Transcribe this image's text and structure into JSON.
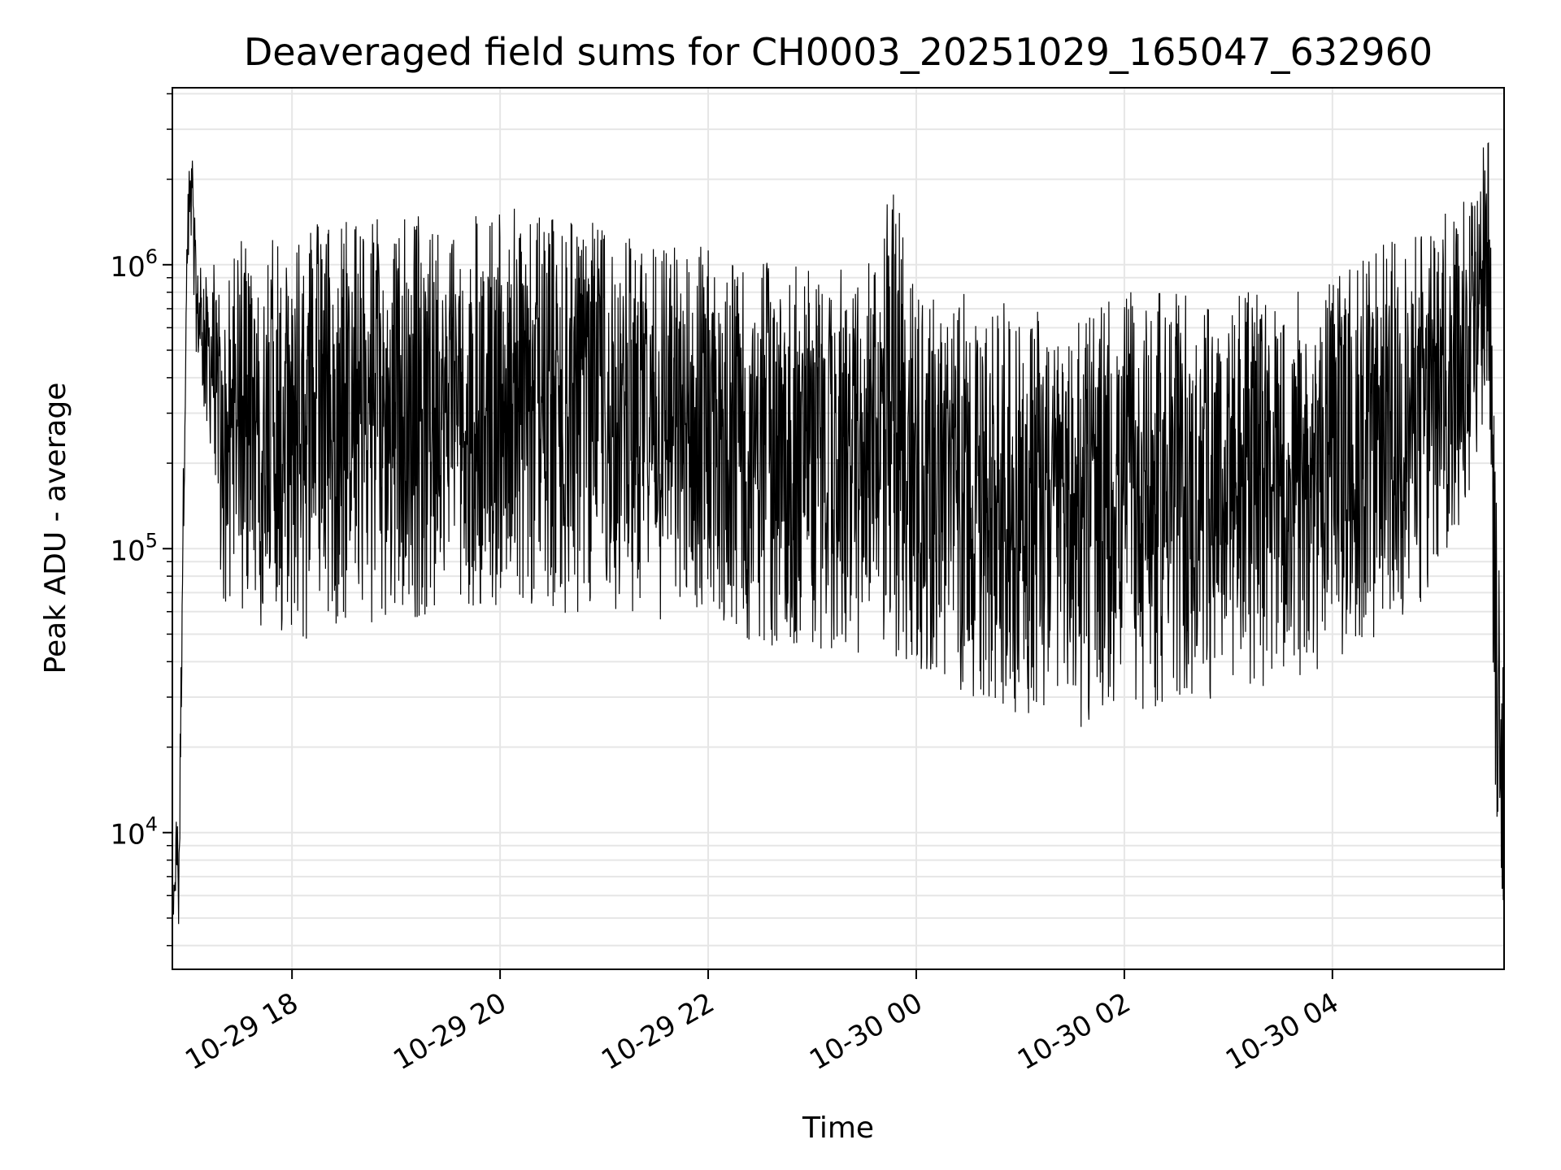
{
  "chart_data": {
    "type": "line",
    "title": "Deaveraged field sums for CH0003_20251029_165047_632960",
    "xlabel": "Time",
    "ylabel": "Peak ADU - average",
    "yscale": "log",
    "grid": true,
    "line_color": "#000000",
    "x_range": [
      "2025-10-29 16:51",
      "2025-10-30 05:39"
    ],
    "ylim": [
      3300,
      4200000
    ],
    "x_ticks": [
      {
        "label": "10-29 18",
        "time": "2025-10-29 18:00"
      },
      {
        "label": "10-29 20",
        "time": "2025-10-29 20:00"
      },
      {
        "label": "10-29 22",
        "time": "2025-10-29 22:00"
      },
      {
        "label": "10-30 00",
        "time": "2025-10-30 00:00"
      },
      {
        "label": "10-30 02",
        "time": "2025-10-30 02:00"
      },
      {
        "label": "10-30 04",
        "time": "2025-10-30 04:00"
      }
    ],
    "y_ticks": [
      {
        "value": 10000,
        "base": "10",
        "exp": "4"
      },
      {
        "value": 100000,
        "base": "10",
        "exp": "5"
      },
      {
        "value": 1000000,
        "base": "10",
        "exp": "6"
      }
    ],
    "envelope_points": [
      {
        "time": "2025-10-29 16:51",
        "high": 5000,
        "low": 4500
      },
      {
        "time": "2025-10-29 16:53",
        "high": 11000,
        "low": 6000
      },
      {
        "time": "2025-10-29 16:55",
        "high": 16000,
        "low": 4200
      },
      {
        "time": "2025-10-29 16:57",
        "high": 180000,
        "low": 60000
      },
      {
        "time": "2025-10-29 17:00",
        "high": 2000000,
        "low": 1000000
      },
      {
        "time": "2025-10-29 17:02",
        "high": 2700000,
        "low": 1200000
      },
      {
        "time": "2025-10-29 17:05",
        "high": 1200000,
        "low": 380000
      },
      {
        "time": "2025-10-29 17:10",
        "high": 900000,
        "low": 300000
      },
      {
        "time": "2025-10-29 17:15",
        "high": 1200000,
        "low": 160000
      },
      {
        "time": "2025-10-29 17:20",
        "high": 700000,
        "low": 65000
      },
      {
        "time": "2025-10-29 17:30",
        "high": 1300000,
        "low": 60000
      },
      {
        "time": "2025-10-29 18:00",
        "high": 1400000,
        "low": 45000
      },
      {
        "time": "2025-10-29 18:30",
        "high": 1500000,
        "low": 55000
      },
      {
        "time": "2025-10-29 19:00",
        "high": 1500000,
        "low": 55000
      },
      {
        "time": "2025-10-29 19:30",
        "high": 1550000,
        "low": 60000
      },
      {
        "time": "2025-10-29 20:00",
        "high": 1600000,
        "low": 60000
      },
      {
        "time": "2025-10-29 20:30",
        "high": 1550000,
        "low": 55000
      },
      {
        "time": "2025-10-29 21:00",
        "high": 1400000,
        "low": 60000
      },
      {
        "time": "2025-10-29 21:30",
        "high": 1200000,
        "low": 55000
      },
      {
        "time": "2025-10-29 22:00",
        "high": 1200000,
        "low": 45000
      },
      {
        "time": "2025-10-29 22:30",
        "high": 1050000,
        "low": 45000
      },
      {
        "time": "2025-10-29 23:00",
        "high": 1000000,
        "low": 42000
      },
      {
        "time": "2025-10-29 23:30",
        "high": 950000,
        "low": 42000
      },
      {
        "time": "2025-10-29 23:45",
        "high": 2200000,
        "low": 42000
      },
      {
        "time": "2025-10-30 00:00",
        "high": 800000,
        "low": 35000
      },
      {
        "time": "2025-10-30 00:30",
        "high": 800000,
        "low": 30000
      },
      {
        "time": "2025-10-30 01:00",
        "high": 750000,
        "low": 26000
      },
      {
        "time": "2025-10-30 01:30",
        "high": 650000,
        "low": 23000
      },
      {
        "time": "2025-10-30 02:00",
        "high": 800000,
        "low": 26000
      },
      {
        "time": "2025-10-30 02:30",
        "high": 800000,
        "low": 28000
      },
      {
        "time": "2025-10-30 03:00",
        "high": 800000,
        "low": 30000
      },
      {
        "time": "2025-10-30 03:30",
        "high": 800000,
        "low": 32000
      },
      {
        "time": "2025-10-30 04:00",
        "high": 900000,
        "low": 38000
      },
      {
        "time": "2025-10-30 04:30",
        "high": 1200000,
        "low": 50000
      },
      {
        "time": "2025-10-30 05:00",
        "high": 1400000,
        "low": 70000
      },
      {
        "time": "2025-10-30 05:20",
        "high": 2000000,
        "low": 150000
      },
      {
        "time": "2025-10-30 05:30",
        "high": 3000000,
        "low": 300000
      },
      {
        "time": "2025-10-30 05:34",
        "high": 200000,
        "low": 12000
      },
      {
        "time": "2025-10-30 05:39",
        "high": 110000,
        "low": 4800
      }
    ]
  }
}
